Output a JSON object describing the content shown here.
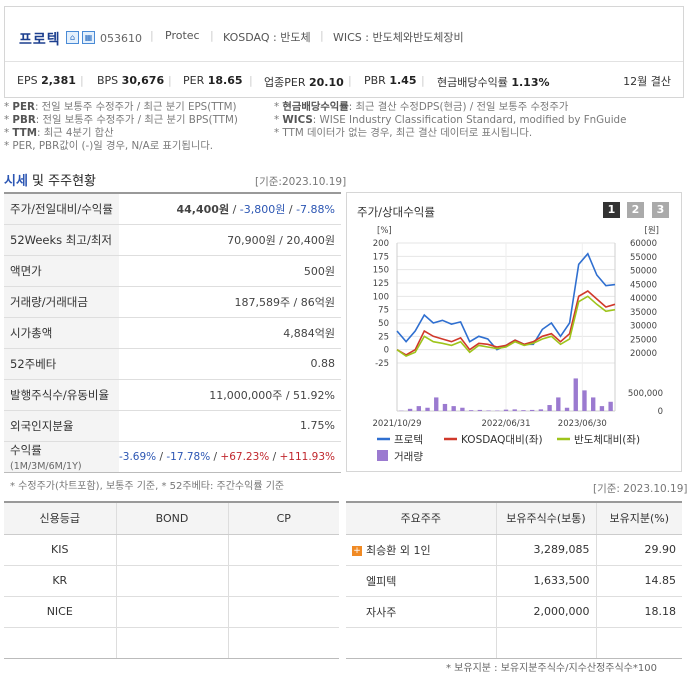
{
  "header": {
    "company_name": "프로텍",
    "code": "053610",
    "english_name": "Protec",
    "market": "KOSDAQ : 반도체",
    "wics": "WICS : 반도체와반도체장비",
    "icon1": "home-icon",
    "icon2": "building-icon",
    "stats": [
      {
        "label": "EPS",
        "value": "2,381"
      },
      {
        "label": "BPS",
        "value": "30,676"
      },
      {
        "label": "PER",
        "value": "18.65"
      },
      {
        "label": "업종PER",
        "value": "20.10"
      },
      {
        "label": "PBR",
        "value": "1.45"
      },
      {
        "label": "현금배당수익률",
        "value": "1.13%"
      }
    ],
    "fiscal": "12월 결산"
  },
  "notes": {
    "n1_key": "PER",
    "n1_text": ": 전일 보통주 수정주가 / 최근 분기 EPS(TTM)",
    "n2_key": "PBR",
    "n2_text": ": 전일 보통주 수정주가 / 최근 분기 BPS(TTM)",
    "n3_key": "TTM",
    "n3_text": ": 최근 4분기 합산",
    "n4_text": "PER, PBR값이 (-)일 경우, N/A로 표기됩니다.",
    "n5_key": "현금배당수익률",
    "n5_text": ": 최근 결산 수정DPS(현금) / 전일 보통주 수정주가",
    "n6_key": "WICS",
    "n6_text": ": WISE Industry Classification Standard, modified by FnGuide",
    "n7_text": "TTM 데이터가 없는 경우, 최근 결산 데이터로 표시됩니다."
  },
  "market_section": {
    "title_highlight": "시세",
    "title_rest": " 및 주주현황",
    "base_date": "[기준:2023.10.19]",
    "rows": [
      {
        "key": "주가/전일대비/수익률",
        "v1": "44,400원",
        "sep1": " / ",
        "v2": "-3,800원",
        "sep2": " / ",
        "v3": "-7.88%"
      },
      {
        "key": "52Weeks 최고/최저",
        "value": "70,900원 / 20,400원"
      },
      {
        "key": "액면가",
        "value": "500원"
      },
      {
        "key": "거래량/거래대금",
        "value": "187,589주 / 86억원"
      },
      {
        "key": "시가총액",
        "value": "4,884억원"
      },
      {
        "key": "52주베타",
        "value": "0.88"
      },
      {
        "key": "발행주식수/유동비율",
        "value": "11,000,000주 / 51.92%"
      },
      {
        "key": "외국인지분율",
        "value": "1.75%"
      }
    ],
    "returns": {
      "key": "수익률",
      "key_sub": "(1M/3M/6M/1Y)",
      "r1": "-3.69%",
      "r2": "-17.78%",
      "r3": "+67.23%",
      "r4": "+111.93%"
    },
    "footnote": "* 수정주가(차트포함), 보통주 기준, * 52주베타: 주간수익률 기준"
  },
  "chart_panel": {
    "title": "주가/상대수익률",
    "buttons": [
      "1",
      "2",
      "3"
    ],
    "active_button": "1"
  },
  "chart_data": {
    "type": "line",
    "left_axis_unit": "[%]",
    "right_axis_unit": "[원]",
    "left_ticks": [
      "200",
      "175",
      "150",
      "125",
      "100",
      "75",
      "50",
      "25",
      "0",
      "-25"
    ],
    "right_ticks": [
      "60000",
      "55000",
      "50000",
      "45000",
      "40000",
      "35000",
      "30000",
      "25000",
      "20000"
    ],
    "volume_tick": "500,000",
    "volume_zero": "0",
    "x_ticks": [
      "2021/10/29",
      "2022/06/31",
      "2023/06/30"
    ],
    "left_ylim": [
      -25,
      200
    ],
    "series": [
      {
        "name": "프로텍",
        "color": "#2f6fd0",
        "values": [
          35,
          15,
          35,
          65,
          50,
          55,
          48,
          52,
          15,
          25,
          20,
          0,
          8,
          18,
          10,
          10,
          38,
          50,
          25,
          50,
          160,
          180,
          140,
          120,
          122
        ]
      },
      {
        "name": "KOSDAQ대비(좌)",
        "color": "#d0392b",
        "values": [
          0,
          -10,
          0,
          35,
          25,
          20,
          15,
          22,
          0,
          12,
          10,
          5,
          8,
          18,
          10,
          15,
          25,
          30,
          15,
          30,
          100,
          110,
          95,
          80,
          85
        ]
      },
      {
        "name": "반도체대비(좌)",
        "color": "#9ec41b",
        "values": [
          0,
          -12,
          -5,
          25,
          15,
          12,
          8,
          15,
          -5,
          8,
          5,
          2,
          5,
          15,
          8,
          12,
          20,
          25,
          10,
          20,
          90,
          100,
          85,
          72,
          75
        ]
      }
    ],
    "volume": {
      "name": "거래량",
      "color": "#9b7ad0",
      "values": [
        5000,
        40000,
        90000,
        60000,
        250000,
        130000,
        90000,
        60000,
        15000,
        20000,
        10000,
        8000,
        25000,
        30000,
        15000,
        20000,
        30000,
        110000,
        250000,
        60000,
        600000,
        380000,
        250000,
        90000,
        170000
      ],
      "ylim": [
        0,
        700000
      ]
    },
    "grid": true
  },
  "credit_table": {
    "headers": [
      "신용등급",
      "BOND",
      "CP"
    ],
    "rows": [
      [
        "KIS",
        "",
        ""
      ],
      [
        "KR",
        "",
        ""
      ],
      [
        "NICE",
        "",
        ""
      ],
      [
        "",
        "",
        ""
      ]
    ]
  },
  "holder_section": {
    "base_date": "[기준: 2023.10.19]",
    "headers": [
      "주요주주",
      "보유주식수(보통)",
      "보유지분(%)"
    ],
    "rows": [
      {
        "name": "최승환 외 1인",
        "shares": "3,289,085",
        "pct": "29.90",
        "expand": true
      },
      {
        "name": "엘피텍",
        "shares": "1,633,500",
        "pct": "14.85"
      },
      {
        "name": "자사주",
        "shares": "2,000,000",
        "pct": "18.18"
      },
      {
        "name": "",
        "shares": "",
        "pct": ""
      }
    ],
    "footnote": "* 보유지분 : 보유지분주식수/지수산정주식수*100"
  }
}
